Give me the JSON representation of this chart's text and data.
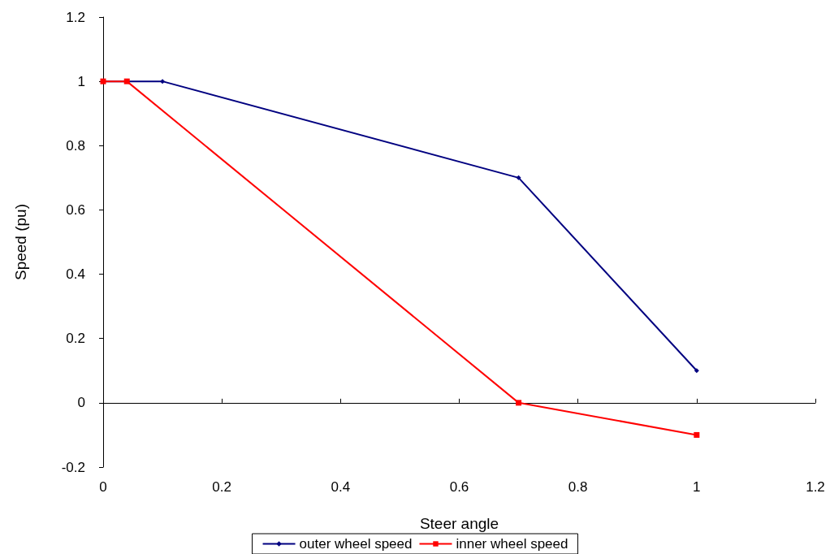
{
  "chart_data": {
    "type": "line",
    "xlabel": "Steer angle",
    "ylabel": "Speed (pu)",
    "xlim": [
      0,
      1.2
    ],
    "xticks": [
      0,
      0.2,
      0.4,
      0.6,
      0.8,
      1,
      1.2
    ],
    "ylim": [
      -0.2,
      1.2
    ],
    "yticks": [
      -0.2,
      0,
      0.2,
      0.4,
      0.6,
      0.8,
      1,
      1.2
    ],
    "legend": "bottom",
    "series": [
      {
        "name": "outer wheel speed",
        "color": "#000080",
        "marker": "diamond",
        "x": [
          0,
          0.1,
          0.7,
          1
        ],
        "values": [
          1,
          1,
          0.7,
          0.1
        ]
      },
      {
        "name": "inner wheel speed",
        "color": "#ff0000",
        "marker": "square",
        "x": [
          0,
          0.04,
          0.7,
          1
        ],
        "values": [
          1,
          1,
          0,
          -0.1
        ]
      }
    ]
  }
}
